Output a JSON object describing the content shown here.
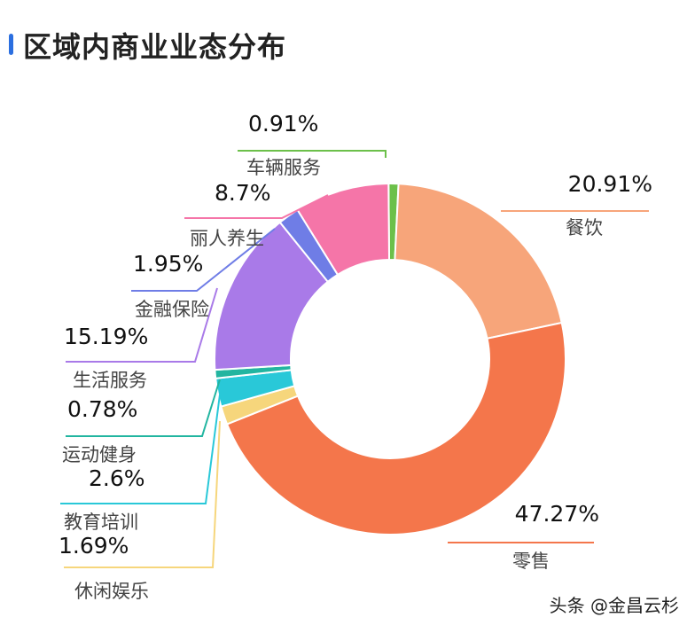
{
  "title": "区域内商业业态分布",
  "watermark": "头条 @金昌云杉",
  "chart_data": {
    "type": "pie",
    "title": "区域内商业业态分布",
    "categories": [
      "车辆服务",
      "餐饮",
      "零售",
      "休闲娱乐",
      "教育培训",
      "运动健身",
      "生活服务",
      "金融保险",
      "丽人养生"
    ],
    "values": [
      0.91,
      20.91,
      47.27,
      1.69,
      2.6,
      0.78,
      15.19,
      1.95,
      8.7
    ],
    "labels": [
      "0.91%",
      "20.91%",
      "47.27%",
      "1.69%",
      "2.6%",
      "0.78%",
      "15.19%",
      "1.95%",
      "8.7%"
    ],
    "colors": [
      "#6cc04a",
      "#f7a57a",
      "#f4764b",
      "#f6d67c",
      "#29c8d8",
      "#22b5a0",
      "#a97ae8",
      "#6f7de6",
      "#f575a8"
    ],
    "donut": true
  }
}
